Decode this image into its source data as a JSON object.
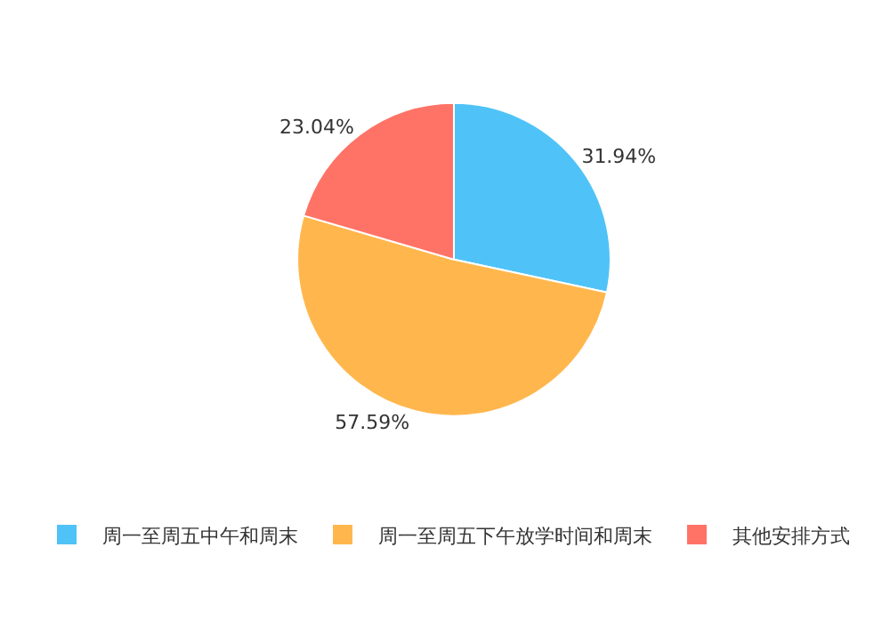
{
  "chart_data": {
    "type": "pie",
    "categories": [
      "周一至周五中午和周末",
      "周一至周五下午放学时间和周末",
      "其他安排方式"
    ],
    "values": [
      31.94,
      57.59,
      23.04
    ],
    "colors": [
      "#4fc3f7",
      "#ffb74d",
      "#ff7366"
    ],
    "value_labels": [
      "31.94%",
      "57.59%",
      "23.04%"
    ],
    "legend": "bottom"
  }
}
